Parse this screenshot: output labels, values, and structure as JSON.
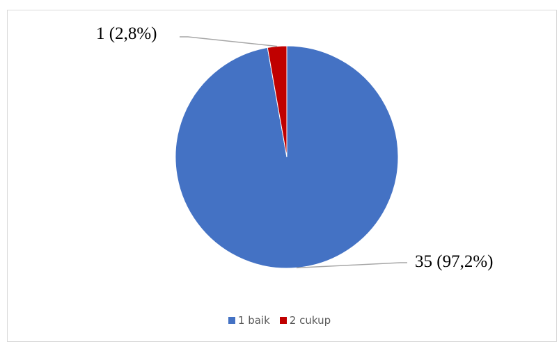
{
  "chart_data": {
    "type": "pie",
    "title": "",
    "slices": [
      {
        "category": "1 baik",
        "value": 35,
        "label": "35 (97,2%)",
        "color": "#4472C4"
      },
      {
        "category": "2 cukup",
        "value": 1,
        "label": "1 (2,8%)",
        "color": "#C00000"
      }
    ],
    "start_angle_deg": 0,
    "direction": "clockwise",
    "legend_position": "bottom",
    "grid": false
  }
}
